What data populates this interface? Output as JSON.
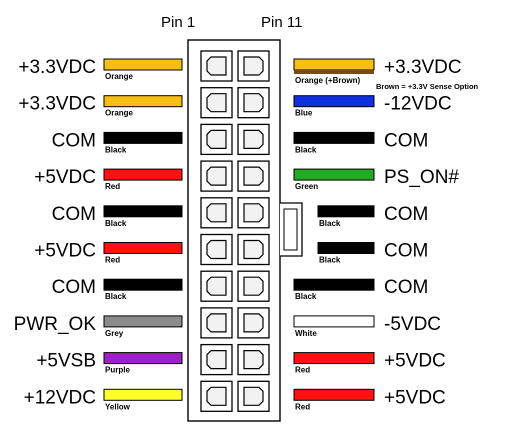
{
  "header": {
    "pin_left": "Pin 1",
    "pin_right": "Pin 11"
  },
  "left_pins": [
    {
      "voltage": "+3.3VDC",
      "color_name": "Orange",
      "color": "#f7bf14"
    },
    {
      "voltage": "+3.3VDC",
      "color_name": "Orange",
      "color": "#f7bf14"
    },
    {
      "voltage": "COM",
      "color_name": "Black",
      "color": "#000000"
    },
    {
      "voltage": "+5VDC",
      "color_name": "Red",
      "color": "#ff1111"
    },
    {
      "voltage": "COM",
      "color_name": "Black",
      "color": "#000000"
    },
    {
      "voltage": "+5VDC",
      "color_name": "Red",
      "color": "#ff1111"
    },
    {
      "voltage": "COM",
      "color_name": "Black",
      "color": "#000000"
    },
    {
      "voltage": "PWR_OK",
      "color_name": "Grey",
      "color": "#8c8c8c"
    },
    {
      "voltage": "+5VSB",
      "color_name": "Purple",
      "color": "#a020c8"
    },
    {
      "voltage": "+12VDC",
      "color_name": "Yellow",
      "color": "#ffff2a"
    }
  ],
  "right_pins": [
    {
      "voltage": "+3.3VDC",
      "color_name": "Orange (+Brown)",
      "color": "#f7bf14",
      "stripe_color": "#7a4a1c",
      "note": "Brown = +3.3V Sense Option"
    },
    {
      "voltage": "-12VDC",
      "color_name": "Blue",
      "color": "#1030e0"
    },
    {
      "voltage": "COM",
      "color_name": "Black",
      "color": "#000000"
    },
    {
      "voltage": "PS_ON#",
      "color_name": "Green",
      "color": "#22aa22"
    },
    {
      "voltage": "COM",
      "color_name": "Black",
      "color": "#000000"
    },
    {
      "voltage": "COM",
      "color_name": "Black",
      "color": "#000000"
    },
    {
      "voltage": "COM",
      "color_name": "Black",
      "color": "#000000"
    },
    {
      "voltage": "-5VDC",
      "color_name": "White",
      "color": "#ffffff"
    },
    {
      "voltage": "+5VDC",
      "color_name": "Red",
      "color": "#ff1111"
    },
    {
      "voltage": "+5VDC",
      "color_name": "Red",
      "color": "#ff1111"
    }
  ]
}
